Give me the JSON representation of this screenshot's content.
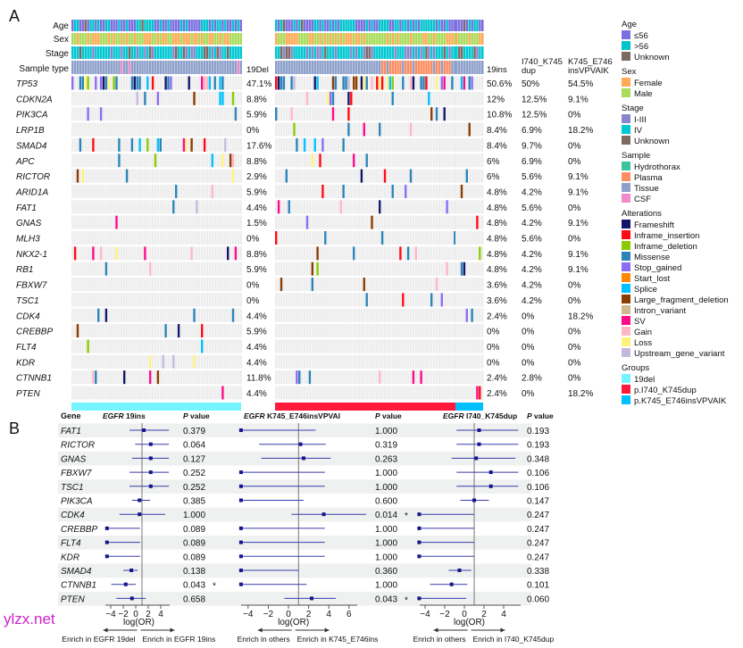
{
  "panel_a": {
    "label": "A",
    "track_labels": [
      "Age",
      "Sex",
      "Stage",
      "Sample type"
    ],
    "column_headers": [
      [
        "19Del"
      ],
      [
        "19ins"
      ],
      [
        "I740_K745",
        "dup"
      ],
      [
        "K745_E746",
        "insVPVAIK"
      ]
    ],
    "genes": [
      {
        "name": "TP53",
        "p": [
          "47.1%",
          "50.6%",
          "50%",
          "54.5%"
        ]
      },
      {
        "name": "CDKN2A",
        "p": [
          "8.8%",
          "12%",
          "12.5%",
          "9.1%"
        ]
      },
      {
        "name": "PIK3CA",
        "p": [
          "5.9%",
          "10.8%",
          "12.5%",
          "0%"
        ]
      },
      {
        "name": "LRP1B",
        "p": [
          "0%",
          "8.4%",
          "6.9%",
          "18.2%"
        ]
      },
      {
        "name": "SMAD4",
        "p": [
          "17.6%",
          "8.4%",
          "9.7%",
          "0%"
        ]
      },
      {
        "name": "APC",
        "p": [
          "8.8%",
          "6%",
          "6.9%",
          "0%"
        ]
      },
      {
        "name": "RICTOR",
        "p": [
          "2.9%",
          "6%",
          "5.6%",
          "9.1%"
        ]
      },
      {
        "name": "ARID1A",
        "p": [
          "5.9%",
          "4.8%",
          "4.2%",
          "9.1%"
        ]
      },
      {
        "name": "FAT1",
        "p": [
          "4.4%",
          "4.8%",
          "5.6%",
          "0%"
        ]
      },
      {
        "name": "GNAS",
        "p": [
          "1.5%",
          "4.8%",
          "4.2%",
          "9.1%"
        ]
      },
      {
        "name": "MLH3",
        "p": [
          "0%",
          "4.8%",
          "5.6%",
          "0%"
        ]
      },
      {
        "name": "NKX2-1",
        "p": [
          "8.8%",
          "4.8%",
          "4.2%",
          "9.1%"
        ]
      },
      {
        "name": "RB1",
        "p": [
          "5.9%",
          "4.8%",
          "4.2%",
          "9.1%"
        ]
      },
      {
        "name": "FBXW7",
        "p": [
          "0%",
          "3.6%",
          "4.2%",
          "0%"
        ]
      },
      {
        "name": "TSC1",
        "p": [
          "0%",
          "3.6%",
          "4.2%",
          "0%"
        ]
      },
      {
        "name": "CDK4",
        "p": [
          "4.4%",
          "2.4%",
          "0%",
          "18.2%"
        ]
      },
      {
        "name": "CREBBP",
        "p": [
          "5.9%",
          "0%",
          "0%",
          "0%"
        ]
      },
      {
        "name": "FLT4",
        "p": [
          "4.4%",
          "0%",
          "0%",
          "0%"
        ]
      },
      {
        "name": "KDR",
        "p": [
          "4.4%",
          "0%",
          "0%",
          "0%"
        ]
      },
      {
        "name": "CTNNB1",
        "p": [
          "11.8%",
          "2.4%",
          "2.8%",
          "0%"
        ]
      },
      {
        "name": "PTEN",
        "p": [
          "4.4%",
          "2.4%",
          "0%",
          "18.2%"
        ]
      }
    ],
    "legend": [
      {
        "title": "Age",
        "items": [
          {
            "label": "≤56",
            "color": "#7b6fe0"
          },
          {
            "label": ">56",
            "color": "#00c4cc"
          },
          {
            "label": "Unknown",
            "color": "#7d6b63"
          }
        ]
      },
      {
        "title": "Sex",
        "items": [
          {
            "label": "Female",
            "color": "#ffaa55"
          },
          {
            "label": "Male",
            "color": "#a8dc5a"
          }
        ]
      },
      {
        "title": "Stage",
        "items": [
          {
            "label": "I-III",
            "color": "#8a86cc"
          },
          {
            "label": "IV",
            "color": "#00c8d2"
          },
          {
            "label": "Unknown",
            "color": "#7d6b63"
          }
        ]
      },
      {
        "title": "Sample",
        "items": [
          {
            "label": "Hydrothorax",
            "color": "#3cc29e"
          },
          {
            "label": "Plasma",
            "color": "#fc8d62"
          },
          {
            "label": "Tissue",
            "color": "#8da0cb"
          },
          {
            "label": "CSF",
            "color": "#f08acb"
          }
        ]
      },
      {
        "title": "Alterations",
        "items": [
          {
            "label": "Frameshift",
            "color": "#15166b"
          },
          {
            "label": "Inframe_insertion",
            "color": "#ff0a14"
          },
          {
            "label": "Inframe_deletion",
            "color": "#8acb00"
          },
          {
            "label": "Missense",
            "color": "#2b83ba"
          },
          {
            "label": "Stop_gained",
            "color": "#8c6cf2"
          },
          {
            "label": "Start_lost",
            "color": "#ff8800"
          },
          {
            "label": "Splice",
            "color": "#00c0ff"
          },
          {
            "label": "Large_fragment_deletion",
            "color": "#8b3c00"
          },
          {
            "label": "Intron_variant",
            "color": "#d2b88e"
          },
          {
            "label": "SV",
            "color": "#ff0a8c"
          },
          {
            "label": "Gain",
            "color": "#ffb6c4"
          },
          {
            "label": "Loss",
            "color": "#fff27a"
          },
          {
            "label": "Upstream_gene_variant",
            "color": "#c4b8dc"
          }
        ]
      },
      {
        "title": "Groups",
        "items": [
          {
            "label": "19del",
            "color": "#74f4ff"
          },
          {
            "label": "p.I740_K745dup",
            "color": "#ff1a3c"
          },
          {
            "label": "p.K745_E746insVPVAIK",
            "color": "#00bfff"
          }
        ]
      }
    ]
  },
  "panel_b": {
    "label": "B",
    "header": {
      "gene": "Gene",
      "p": "P value",
      "cols": [
        [
          "EGFR",
          " 19ins"
        ],
        [
          "EGFR",
          " K745_E746insVPVAI"
        ],
        [
          "EGFR",
          " I740_K745dup"
        ]
      ]
    },
    "axis_label": "log(OR)",
    "enrich": [
      [
        "Enrich in EGFR 19del",
        "Enrich in EGFR 19ins"
      ],
      [
        "Enrich in others",
        "Enrich in K745_E746ins"
      ],
      [
        "Enrich in others",
        "Enrich in I740_K745dup"
      ]
    ],
    "ticks": [
      [
        "−4",
        "−2",
        "0",
        "2",
        "4"
      ],
      [
        "−4",
        "−2",
        "0",
        "2",
        "4",
        "6"
      ],
      [
        "−4",
        "−2",
        "0",
        "2",
        "4"
      ]
    ],
    "star": "*"
  },
  "chart_data": {
    "type": "forest",
    "xlabel": "log(OR)",
    "reference_line": 1,
    "genes": [
      "FAT1",
      "RICTOR",
      "GNAS",
      "FBXW7",
      "TSC1",
      "PIK3CA",
      "CDK4",
      "CREBBP",
      "FLT4",
      "KDR",
      "SMAD4",
      "CTNNB1",
      "PTEN"
    ],
    "series": [
      {
        "name": "EGFR 19ins",
        "tick_values": [
          -4,
          -2,
          0,
          2,
          4
        ],
        "est": [
          1.3,
          2.4,
          2.4,
          2.4,
          2.4,
          0.6,
          0.6,
          -4.6,
          -4.6,
          -4.6,
          -0.7,
          -1.6,
          -0.6
        ],
        "lo": [
          -1.0,
          -0.1,
          -0.6,
          -1.0,
          -1.0,
          -0.6,
          -2.6,
          -4.6,
          -4.6,
          -4.6,
          -2.0,
          -3.9,
          -3.1
        ],
        "hi": [
          5.3,
          5.3,
          5.3,
          5.3,
          5.3,
          2.3,
          4.7,
          0.7,
          0.7,
          0.7,
          0.3,
          0.0,
          1.6
        ],
        "p": [
          "0.379",
          "0.064",
          "0.127",
          "0.252",
          "0.252",
          "0.385",
          "1.000",
          "0.089",
          "0.089",
          "0.089",
          "0.138",
          "0.043",
          "0.658"
        ],
        "sig": [
          false,
          false,
          false,
          false,
          false,
          false,
          false,
          false,
          false,
          false,
          false,
          true,
          false
        ]
      },
      {
        "name": "EGFR K745_E746insVPVAI",
        "tick_values": [
          -4,
          -2,
          0,
          2,
          4,
          6
        ],
        "est": [
          -4.7,
          1.2,
          1.5,
          -4.7,
          -4.7,
          -4.7,
          3.5,
          -4.7,
          -4.7,
          -4.7,
          -4.7,
          -4.7,
          2.3
        ],
        "lo": [
          -4.7,
          -2.9,
          -2.7,
          -4.7,
          -4.7,
          -4.7,
          0.3,
          -4.7,
          -4.7,
          -4.7,
          -4.7,
          -4.7,
          -0.4
        ],
        "hi": [
          2.7,
          3.7,
          4.2,
          3.6,
          3.6,
          1.5,
          7.7,
          3.6,
          3.6,
          3.6,
          1.0,
          1.8,
          4.7
        ],
        "p": [
          "1.000",
          "0.319",
          "0.263",
          "1.000",
          "1.000",
          "0.600",
          "0.014",
          "1.000",
          "1.000",
          "1.000",
          "0.360",
          "1.000",
          "0.043"
        ],
        "sig": [
          false,
          false,
          false,
          false,
          false,
          false,
          true,
          false,
          false,
          false,
          false,
          false,
          true
        ]
      },
      {
        "name": "EGFR I740_K745dup",
        "tick_values": [
          -4,
          -2,
          0,
          2,
          4
        ],
        "est": [
          1.5,
          1.5,
          1.2,
          2.7,
          2.7,
          1.0,
          -4.6,
          -4.6,
          -4.6,
          -4.6,
          -0.5,
          -1.3,
          -4.6
        ],
        "lo": [
          -0.8,
          -0.8,
          -1.3,
          -0.8,
          -0.8,
          -0.4,
          -4.6,
          -4.6,
          -4.6,
          -4.6,
          -1.6,
          -3.5,
          -4.6
        ],
        "hi": [
          5.5,
          5.5,
          5.2,
          5.5,
          5.5,
          2.5,
          1.0,
          1.0,
          1.0,
          1.0,
          0.7,
          0.3,
          0.2
        ],
        "p": [
          "0.193",
          "0.193",
          "0.348",
          "0.106",
          "0.106",
          "0.147",
          "0.247",
          "0.247",
          "0.247",
          "0.247",
          "0.338",
          "0.101",
          "0.060"
        ],
        "sig": [
          false,
          false,
          false,
          false,
          false,
          false,
          false,
          false,
          false,
          false,
          false,
          false,
          false
        ]
      }
    ]
  },
  "watermark": "ylzx.net"
}
